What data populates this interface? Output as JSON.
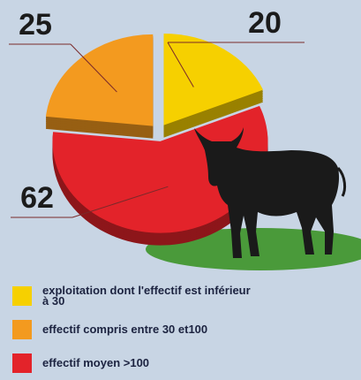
{
  "chart_data": {
    "type": "pie",
    "categories": [
      "exploitation dont l'effectif est inférieur à 30",
      "effectif compris entre 30 et100",
      "effectif moyen >100"
    ],
    "values": [
      20,
      25,
      62
    ],
    "colors": [
      "#f6d000",
      "#f39a1f",
      "#e3232a"
    ],
    "legend": "bottom"
  }
}
